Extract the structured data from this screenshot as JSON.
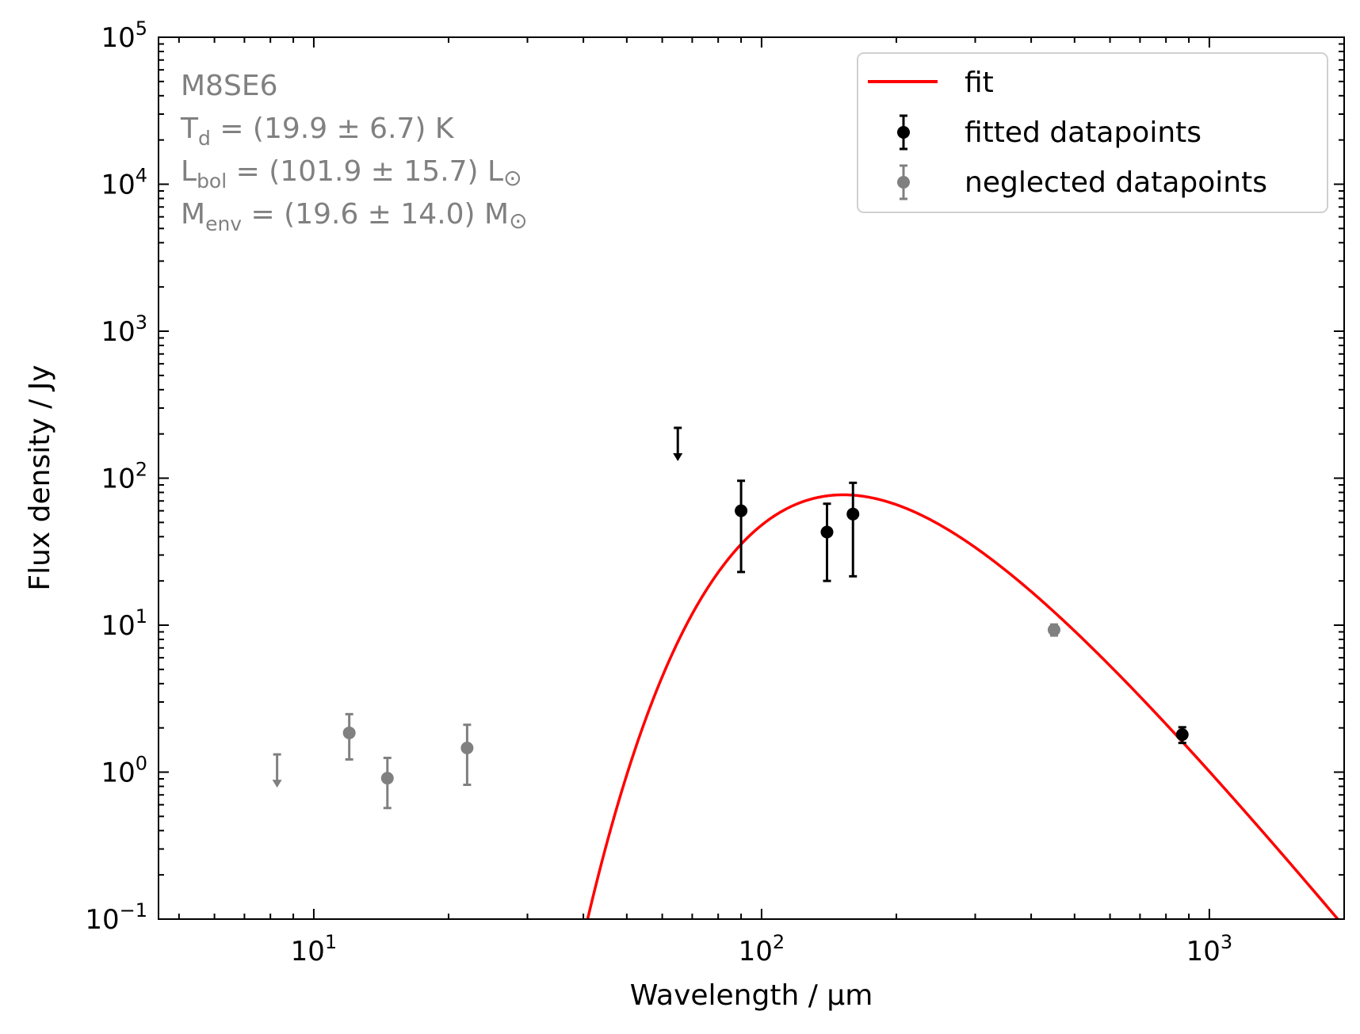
{
  "chart_data": {
    "type": "scatter",
    "title": "",
    "xlabel": "Wavelength / μm",
    "ylabel": "Flux density / Jy",
    "xscale": "log",
    "yscale": "log",
    "xlim": [
      4.5,
      2000
    ],
    "ylim": [
      0.1,
      100000
    ],
    "x_major_ticks": [
      {
        "value": 10,
        "base": "10",
        "exp": "1"
      },
      {
        "value": 100,
        "base": "10",
        "exp": "2"
      },
      {
        "value": 1000,
        "base": "10",
        "exp": "3"
      }
    ],
    "y_major_ticks": [
      {
        "value": 0.1,
        "base": "10",
        "exp": "−1"
      },
      {
        "value": 1,
        "base": "10",
        "exp": "0"
      },
      {
        "value": 10,
        "base": "10",
        "exp": "1"
      },
      {
        "value": 100,
        "base": "10",
        "exp": "2"
      },
      {
        "value": 1000,
        "base": "10",
        "exp": "3"
      },
      {
        "value": 10000,
        "base": "10",
        "exp": "4"
      },
      {
        "value": 100000,
        "base": "10",
        "exp": "5"
      }
    ],
    "annotation": {
      "source": "M8SE6",
      "td": {
        "sym": "T",
        "sub": "d",
        "rest": " = (19.9 ± 6.7) K"
      },
      "lbol": {
        "sym": "L",
        "sub": "bol",
        "rest": " = (101.9 ± 15.7) L",
        "unit": "⊙"
      },
      "menv": {
        "sym": "M",
        "sub": "env",
        "rest": " = (19.6 ± 14.0) M",
        "unit": "⊙"
      }
    },
    "legend": {
      "position": "top-right",
      "entries": [
        {
          "label": "fit",
          "kind": "line",
          "color": "#ff0000"
        },
        {
          "label": "fitted datapoints",
          "kind": "errorbar",
          "color": "#000000"
        },
        {
          "label": "neglected datapoints",
          "kind": "errorbar",
          "color": "#808080"
        }
      ]
    },
    "fit": {
      "name": "fit",
      "color": "#ff0000",
      "model": "modified blackbody",
      "peak_wavelength": 155,
      "peak_flux": 77,
      "beta": 1.79,
      "x_range": [
        40,
        2000
      ]
    },
    "series": [
      {
        "name": "fitted datapoints",
        "color": "#000000",
        "points": [
          {
            "x": 90,
            "y": 60,
            "yerr_low": 23,
            "yerr_high": 96
          },
          {
            "x": 140,
            "y": 43,
            "yerr_low": 20,
            "yerr_high": 67
          },
          {
            "x": 160,
            "y": 57,
            "yerr_low": 21.5,
            "yerr_high": 93
          },
          {
            "x": 870,
            "y": 1.8,
            "yerr_low": 1.58,
            "yerr_high": 2.02
          }
        ],
        "upper_limits": [
          {
            "x": 65,
            "y": 220
          }
        ]
      },
      {
        "name": "neglected datapoints",
        "color": "#808080",
        "points": [
          {
            "x": 12,
            "y": 1.85,
            "yerr_low": 1.22,
            "yerr_high": 2.48
          },
          {
            "x": 14.6,
            "y": 0.91,
            "yerr_low": 0.57,
            "yerr_high": 1.25
          },
          {
            "x": 22,
            "y": 1.46,
            "yerr_low": 0.82,
            "yerr_high": 2.1
          },
          {
            "x": 450,
            "y": 9.3,
            "yerr_low": 8.5,
            "yerr_high": 10.1
          }
        ],
        "upper_limits": [
          {
            "x": 8.28,
            "y": 1.32
          }
        ]
      }
    ]
  }
}
